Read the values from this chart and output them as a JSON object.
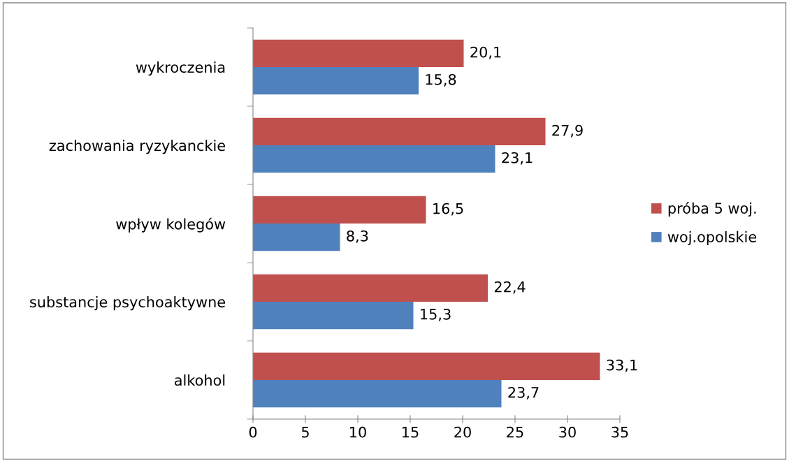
{
  "chart_data": {
    "type": "bar",
    "orientation": "horizontal",
    "categories": [
      "wykroczenia",
      "zachowania ryzykanckie",
      "wpływ kolegów",
      "substancje psychoaktywne",
      "alkohol"
    ],
    "series": [
      {
        "name": "próba 5 woj.",
        "color": "#c0504d",
        "values": [
          20.1,
          27.9,
          16.5,
          22.4,
          33.1
        ],
        "value_labels": [
          "20,1",
          "27,9",
          "16,5",
          "22,4",
          "33,1"
        ]
      },
      {
        "name": "woj.opolskie",
        "color": "#4f81bd",
        "values": [
          15.8,
          23.1,
          8.3,
          15.3,
          23.7
        ],
        "value_labels": [
          "15,8",
          "23,1",
          "8,3",
          "15,3",
          "23,7"
        ]
      }
    ],
    "xlim": [
      0,
      35
    ],
    "xticks": [
      0,
      5,
      10,
      15,
      20,
      25,
      30,
      35
    ],
    "grid": false,
    "legend": "right"
  }
}
